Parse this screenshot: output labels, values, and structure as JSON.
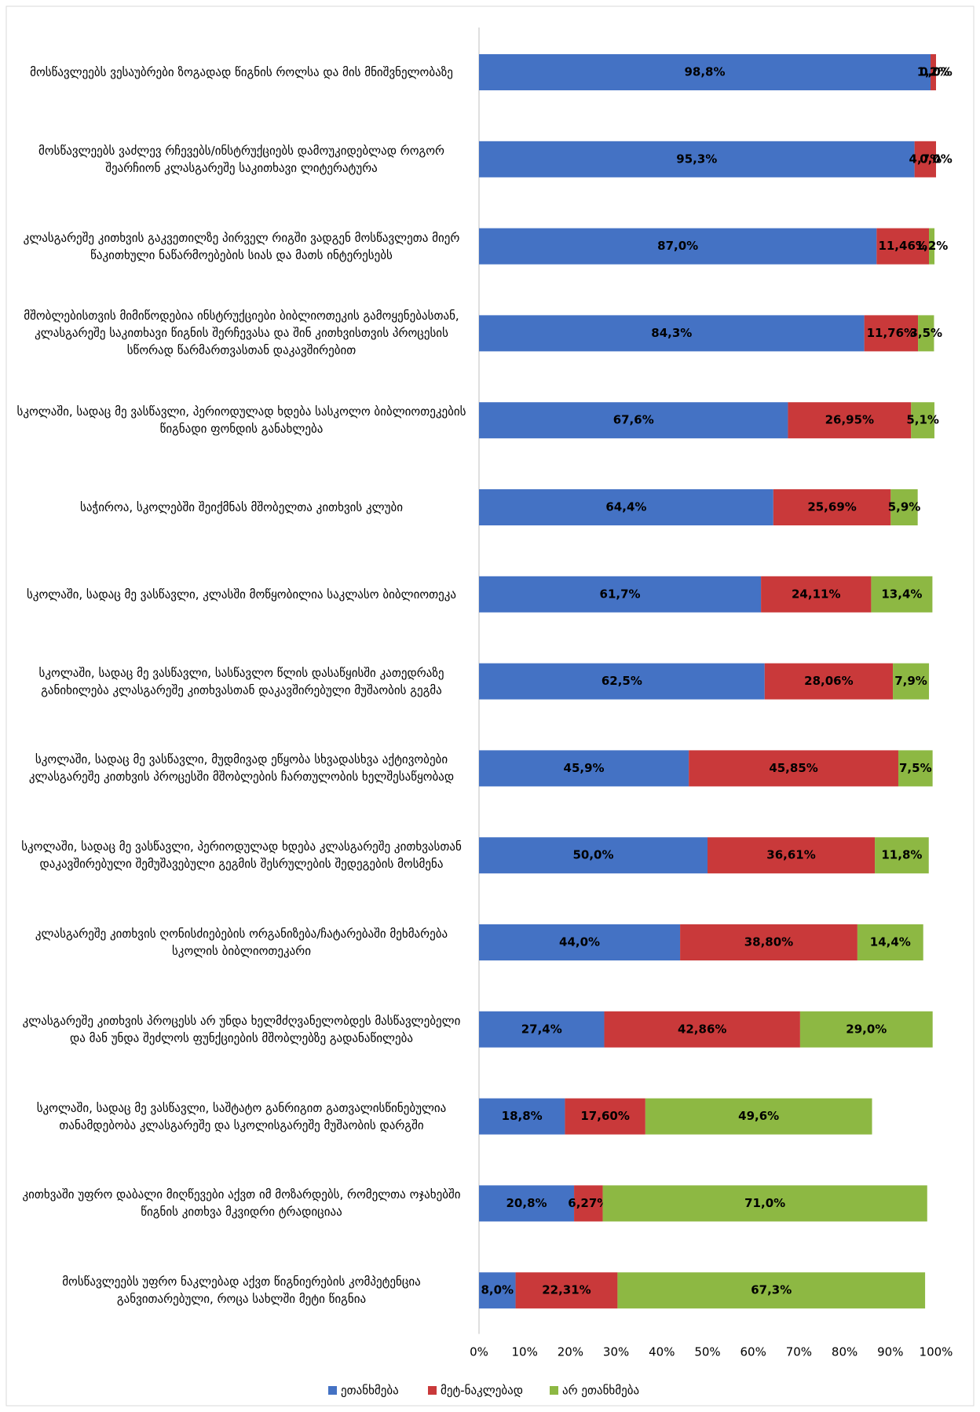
{
  "chart_data": {
    "type": "stacked-barh",
    "categories": [
      "მოსწავლეებს ვესაუბრები ზოგადად წიგნის როლსა და მის მნიშვნელობაზე",
      "მოსწავლეებს ვაძლევ რჩევებს/ინსტრუქციებს დამოუკიდებლად როგორ შეარჩიონ კლასგარეშე საკითხავი ლიტერატურა",
      "კლასგარეშე კითხვის გაკვეთილზე პირველ რიგში ვადგენ მოსწავლეთა მიერ წაკითხული ნაწარმოებების სიას და მათს ინტერესებს",
      "მშობლებისთვის მიმიწოდებია ინსტრუქციები ბიბლიოთეკის გამოყენებასთან, კლასგარეშე საკითხავი წიგნის შერჩევასა და შინ კითხვისთვის პროცესის სწორად წარმართვასთან დაკავშირებით",
      "სკოლაში, სადაც მე ვასწავლი, პერიოდულად ხდება სასკოლო ბიბლიოთეკების წიგნადი ფონდის განახლება",
      "საჭიროა, სკოლებში შეიქმნას მშობელთა კითხვის კლუბი",
      "სკოლაში, სადაც მე ვასწავლი, კლასში მოწყობილია საკლასო ბიბლიოთეკა",
      "სკოლაში, სადაც მე ვასწავლი, სასწავლო წლის დასაწყისში კათედრაზე განიხილება კლასგარეშე კითხვასთან დაკავშირებული მუშაობის გეგმა",
      "სკოლაში, სადაც მე ვასწავლი, მუდმივად ეწყობა სხვადასხვა აქტივობები კლასგარეშე კითხვის პროცესში მშობლების ჩართულობის ხელშესაწყობად",
      "სკოლაში, სადაც მე ვასწავლი, პერიოდულად ხდება კლასგარეშე კითხვასთან დაკავშირებული შემუშავებული გეგმის შესრულების შედეგების მოსმენა",
      "კლასგარეშე კითხვის ღონისძიებების ორგანიზება/ჩატარებაში მეხმარება სკოლის ბიბლიოთეკარი",
      "კლასგარეშე კითხვის პროცესს არ უნდა ხელმძღვანელობდეს მასწავლებელი და მან უნდა შეძლოს ფუნქციების მშობლებზე გადანაწილება",
      "სკოლაში, სადაც მე ვასწავლი, საშტატო განრიგით გათვალისწინებულია თანამდებობა კლასგარეშე და სკოლისგარეშე მუშაობის დარგში",
      "კითხვაში უფრო დაბალი მიღწევები აქვთ იმ მოზარდებს, რომელთა ოჯახებში წიგნის კითხვა მკვიდრი ტრადიციაა",
      "მოსწავლეებს უფრო ნაკლებად აქვთ წიგნიერების კომპეტენცია განვითარებული, როცა სახლში მეტი წიგნია"
    ],
    "series": [
      {
        "name": "ეთანხმება",
        "color": "#4472c4",
        "values": [
          98.8,
          95.3,
          87.0,
          84.3,
          67.6,
          64.4,
          61.7,
          62.5,
          45.9,
          50.0,
          44.0,
          27.4,
          18.8,
          20.8,
          8.0
        ],
        "value_labels": [
          "98,8%",
          "95,3%",
          "87,0%",
          "84,3%",
          "67,6%",
          "64,4%",
          "61,7%",
          "62,5%",
          "45,9%",
          "50,0%",
          "44,0%",
          "27,4%",
          "18,8%",
          "20,8%",
          "8,0%"
        ]
      },
      {
        "name": "მეტ-ნაკლებად",
        "color": "#c9393a",
        "values": [
          1.2,
          4.7,
          11.46,
          11.76,
          26.95,
          25.69,
          24.11,
          28.06,
          45.85,
          36.61,
          38.8,
          42.86,
          17.6,
          6.27,
          22.31
        ],
        "value_labels": [
          "1,2%",
          "4,7%",
          "11,46%",
          "11,76%",
          "26,95%",
          "25,69%",
          "24,11%",
          "28,06%",
          "45,85%",
          "36,61%",
          "38,80%",
          "42,86%",
          "17,60%",
          "6,27%",
          "22,31%"
        ]
      },
      {
        "name": "არ ეთანხმება",
        "color": "#8db843",
        "values": [
          0.0,
          0.0,
          1.2,
          3.5,
          5.1,
          5.9,
          13.4,
          7.9,
          7.5,
          11.8,
          14.4,
          29.0,
          49.6,
          71.0,
          67.3
        ],
        "value_labels": [
          "0,0%",
          "0,0%",
          "1,2%",
          "3,5%",
          "5,1%",
          "5,9%",
          "13,4%",
          "7,9%",
          "7,5%",
          "11,8%",
          "14,4%",
          "29,0%",
          "49,6%",
          "71,0%",
          "67,3%"
        ]
      }
    ],
    "xlim": [
      0,
      100
    ],
    "xticks": [
      {
        "value": 0,
        "label": "0%"
      },
      {
        "value": 10,
        "label": "10%"
      },
      {
        "value": 20,
        "label": "20%"
      },
      {
        "value": 30,
        "label": "30%"
      },
      {
        "value": 40,
        "label": "40%"
      },
      {
        "value": 50,
        "label": "50%"
      },
      {
        "value": 60,
        "label": "60%"
      },
      {
        "value": 70,
        "label": "70%"
      },
      {
        "value": 80,
        "label": "80%"
      },
      {
        "value": 90,
        "label": "90%"
      },
      {
        "value": 100,
        "label": "100%"
      }
    ],
    "legend": "bottom"
  }
}
